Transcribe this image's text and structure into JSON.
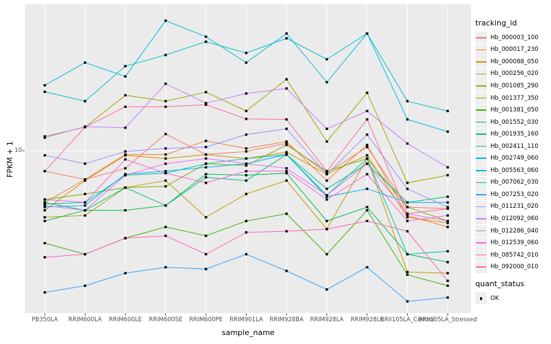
{
  "chart_data": {
    "type": "line",
    "xlabel": "sample_name",
    "ylabel": "FPKM + 1",
    "y_scale": "log10",
    "y_ticks": [
      {
        "value": 10,
        "label": "10"
      }
    ],
    "legend_title": "tracking_id",
    "quant_legend": {
      "title": "quant_status",
      "items": [
        {
          "label": "OK",
          "marker": "black-square"
        }
      ]
    },
    "panel_bg": "#EBEBEB",
    "grid_color": "#FFFFFF",
    "marker": "square",
    "marker_color": "#000000",
    "categories": [
      "PB350LA",
      "RRIM600LA",
      "RRIM600LE",
      "RRIM600SE",
      "RRIM600PE",
      "RRIM901LA",
      "RRIM928BA",
      "RRIM928LA",
      "RRIM928LE",
      "RRII105LA_Control",
      "RRII105LA_Stressed"
    ],
    "series": [
      {
        "name": "Hb_000003_100",
        "color": "#F8766D",
        "values": [
          7.6,
          6.8,
          7.9,
          12.5,
          9.5,
          9.9,
          11.0,
          7.4,
          10.5,
          4.7,
          4.6
        ]
      },
      {
        "name": "Hb_000017_230",
        "color": "#EA8331",
        "values": [
          5.0,
          6.8,
          9.5,
          9.5,
          11.4,
          10.3,
          11.3,
          6.7,
          10.8,
          4.2,
          3.6
        ]
      },
      {
        "name": "Hb_000088_050",
        "color": "#D89000",
        "values": [
          4.5,
          6.7,
          9.4,
          9.0,
          9.5,
          9.0,
          9.8,
          7.3,
          9.4,
          4.1,
          3.8
        ]
      },
      {
        "name": "Hb_000256_020",
        "color": "#C09B00",
        "values": [
          4.1,
          4.2,
          6.1,
          6.7,
          4.1,
          5.6,
          6.7,
          3.5,
          9.0,
          1.97,
          1.94
        ]
      },
      {
        "name": "Hb_001085_290",
        "color": "#A3A500",
        "values": [
          12.1,
          13.7,
          21.0,
          19.4,
          21.9,
          17.0,
          26.0,
          11.3,
          21.7,
          6.5,
          7.2
        ]
      },
      {
        "name": "Hb_001377_350",
        "color": "#7CAE00",
        "values": [
          5.2,
          5.6,
          6.1,
          6.2,
          8.4,
          8.2,
          10.8,
          7.6,
          9.0,
          4.7,
          3.9
        ]
      },
      {
        "name": "Hb_001381_050",
        "color": "#39B600",
        "values": [
          2.9,
          2.5,
          3.1,
          3.6,
          3.2,
          3.9,
          4.3,
          2.5,
          4.5,
          1.9,
          1.64
        ]
      },
      {
        "name": "Hb_001552_030",
        "color": "#00BB4E",
        "values": [
          3.9,
          4.5,
          4.5,
          4.8,
          7.3,
          7.2,
          7.4,
          3.9,
          4.7,
          2.5,
          2.25
        ]
      },
      {
        "name": "Hb_001935_160",
        "color": "#00BF7D",
        "values": [
          5.0,
          4.5,
          6.1,
          4.8,
          7.0,
          6.7,
          9.5,
          6.0,
          8.4,
          5.0,
          5.4
        ]
      },
      {
        "name": "Hb_002411_110",
        "color": "#00C1A3",
        "values": [
          4.9,
          5.0,
          7.2,
          7.4,
          8.4,
          9.0,
          9.5,
          5.5,
          9.0,
          2.5,
          2.6
        ]
      },
      {
        "name": "Hb_002749_060",
        "color": "#00BFC4",
        "values": [
          22,
          19.4,
          31,
          36,
          43,
          37,
          45,
          34,
          48,
          19.4,
          17
        ]
      },
      {
        "name": "Hb_005563_060",
        "color": "#00BAE0",
        "values": [
          24,
          32.5,
          27,
          57,
          46,
          32.5,
          48,
          25,
          48,
          15.2,
          12.9
        ]
      },
      {
        "name": "Hb_007062_030",
        "color": "#00B0F6",
        "values": [
          4.7,
          4.8,
          7.3,
          7.6,
          8.0,
          8.4,
          9.5,
          5.4,
          6.0,
          5.0,
          5.0
        ]
      },
      {
        "name": "Hb_007253_020",
        "color": "#35A2FF",
        "values": [
          1.5,
          1.64,
          1.94,
          2.1,
          2.05,
          2.5,
          2.0,
          1.56,
          2.1,
          1.33,
          1.4
        ]
      },
      {
        "name": "Hb_011231_020",
        "color": "#9590FF",
        "values": [
          9.4,
          8.4,
          9.9,
          10.3,
          10.5,
          12.4,
          13.4,
          7.3,
          12.4,
          6.0,
          4.7
        ]
      },
      {
        "name": "Hb_012092_060",
        "color": "#C77CFF",
        "values": [
          11.9,
          13.8,
          13.6,
          24.5,
          18.9,
          21.5,
          23.0,
          13.4,
          17.0,
          11.0,
          8.0
        ]
      },
      {
        "name": "Hb_012286_040",
        "color": "#E76BF3",
        "values": [
          4.8,
          4.5,
          7.2,
          8.4,
          9.0,
          8.4,
          7.9,
          5.5,
          8.4,
          4.3,
          3.9
        ]
      },
      {
        "name": "Hb_012539_060",
        "color": "#FA62DB",
        "values": [
          5.2,
          5.0,
          8.9,
          7.4,
          6.5,
          7.6,
          7.6,
          5.2,
          7.3,
          3.9,
          4.2
        ]
      },
      {
        "name": "Hb_085742_010",
        "color": "#FF62BC",
        "values": [
          2.4,
          2.5,
          3.1,
          3.2,
          2.5,
          3.35,
          3.4,
          3.5,
          3.9,
          3.4,
          1.75
        ]
      },
      {
        "name": "Hb_092000_010",
        "color": "#FF6A98",
        "values": [
          7.6,
          13.7,
          18.0,
          18.0,
          18.5,
          15.3,
          15.2,
          7.6,
          15.2,
          4.3,
          4.6
        ]
      }
    ]
  }
}
